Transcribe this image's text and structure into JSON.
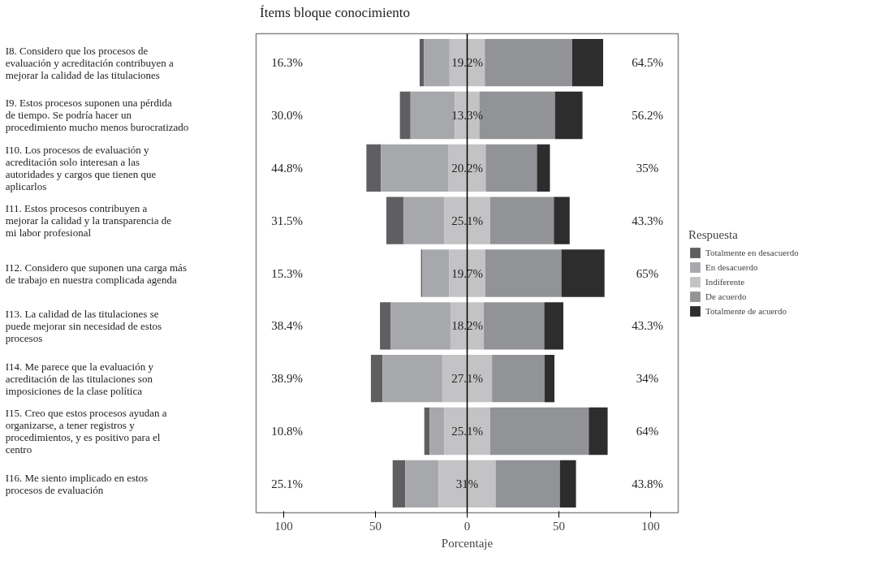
{
  "chart_data": {
    "type": "bar",
    "orientation": "horizontal",
    "title": "Ítems bloque conocimiento",
    "xlabel": "Porcentaje",
    "legend_title": "Respuesta",
    "legend": "right",
    "categories": [
      "I8. Considero que los procesos de evaluación y acreditación contribuyen a mejorar la calidad de las titulaciones",
      "I9. Estos procesos suponen una pérdida de tiempo. Se podría hacer un procedimiento mucho menos burocratizado",
      "I10. Los procesos de evaluación y acreditación solo interesan a las autoridades y cargos que tienen que aplicarlos",
      "I11. Estos procesos contribuyen a mejorar la calidad y la transparencia de mi labor profesional",
      "I12. Considero que suponen una carga más de trabajo en nuestra complicada agenda",
      "I13. La calidad de las titulaciones se puede mejorar sin necesidad de estos procesos",
      "I14. Me parece que la evaluación y acreditación de las titulaciones son imposiciones de la clase política",
      "I15. Creo que estos procesos ayudan a organizarse, a tener registros y procedimientos, y es positivo para el centro",
      "I16. Me siento implicado en estos procesos de evaluación"
    ],
    "series": [
      {
        "name": "Totalmente en desacuerdo",
        "color": "#5f5f62",
        "base": [
          -25.9,
          -36.65,
          -54.9,
          -44.05,
          -25.15,
          -47.5,
          -52.45,
          -23.35,
          -40.6
        ],
        "values": [
          2.3,
          5.8,
          7.9,
          9.3,
          0.8,
          5.7,
          6.4,
          2.9,
          6.9
        ]
      },
      {
        "name": "En desacuerdo",
        "color": "#a7a8ab",
        "base": [
          -23.6,
          -30.85,
          -47.0,
          -34.75,
          -24.35,
          -41.8,
          -46.05,
          -20.45,
          -33.7
        ],
        "values": [
          14.0,
          24.2,
          36.9,
          22.2,
          14.5,
          32.7,
          32.5,
          7.9,
          18.2
        ]
      },
      {
        "name": "Indiferente",
        "color": "#c3c3c5",
        "base": [
          -9.6,
          -6.65,
          -10.1,
          -12.55,
          -9.85,
          -9.1,
          -13.55,
          -12.55,
          -15.5
        ],
        "values": [
          19.2,
          13.3,
          20.2,
          25.1,
          19.7,
          18.2,
          27.1,
          25.1,
          31
        ],
        "value_labels": [
          "19.2%",
          "13.3%",
          "20.2%",
          "25.1%",
          "19.7%",
          "18.2%",
          "27.1%",
          "25.1%",
          "31%"
        ]
      },
      {
        "name": "De acuerdo",
        "color": "#929396",
        "base": [
          9.6,
          6.65,
          10.1,
          12.55,
          9.85,
          9.1,
          13.55,
          12.55,
          15.5
        ],
        "values": [
          47.6,
          41.2,
          27.9,
          34.7,
          41.5,
          32.9,
          28.6,
          53.7,
          35.0
        ]
      },
      {
        "name": "Totalmente de acuerdo",
        "color": "#2e2d2e",
        "base": [
          57.2,
          47.85,
          38.0,
          47.25,
          51.35,
          42.0,
          42.15,
          66.25,
          50.5
        ],
        "values": [
          16.9,
          15.0,
          7.1,
          8.6,
          23.5,
          10.4,
          5.4,
          10.3,
          8.8
        ]
      }
    ],
    "xlim": [
      -115,
      115
    ],
    "xticks": [
      {
        "value": -100,
        "label": "100"
      },
      {
        "value": -50,
        "label": "50"
      },
      0,
      50,
      100
    ],
    "ref_lines": [
      {
        "axis": "x",
        "value": 0,
        "color": "#000000"
      }
    ],
    "annotations": [
      "16.3%",
      "64.5%",
      "30.0%",
      "56.2%",
      "44.8%",
      "35%",
      "31.5%",
      "43.3%",
      "15.3%",
      "65%",
      "38.4%",
      "43.3%",
      "38.9%",
      "34%",
      "10.8%",
      "64%",
      "25.1%",
      "43.8%"
    ]
  }
}
